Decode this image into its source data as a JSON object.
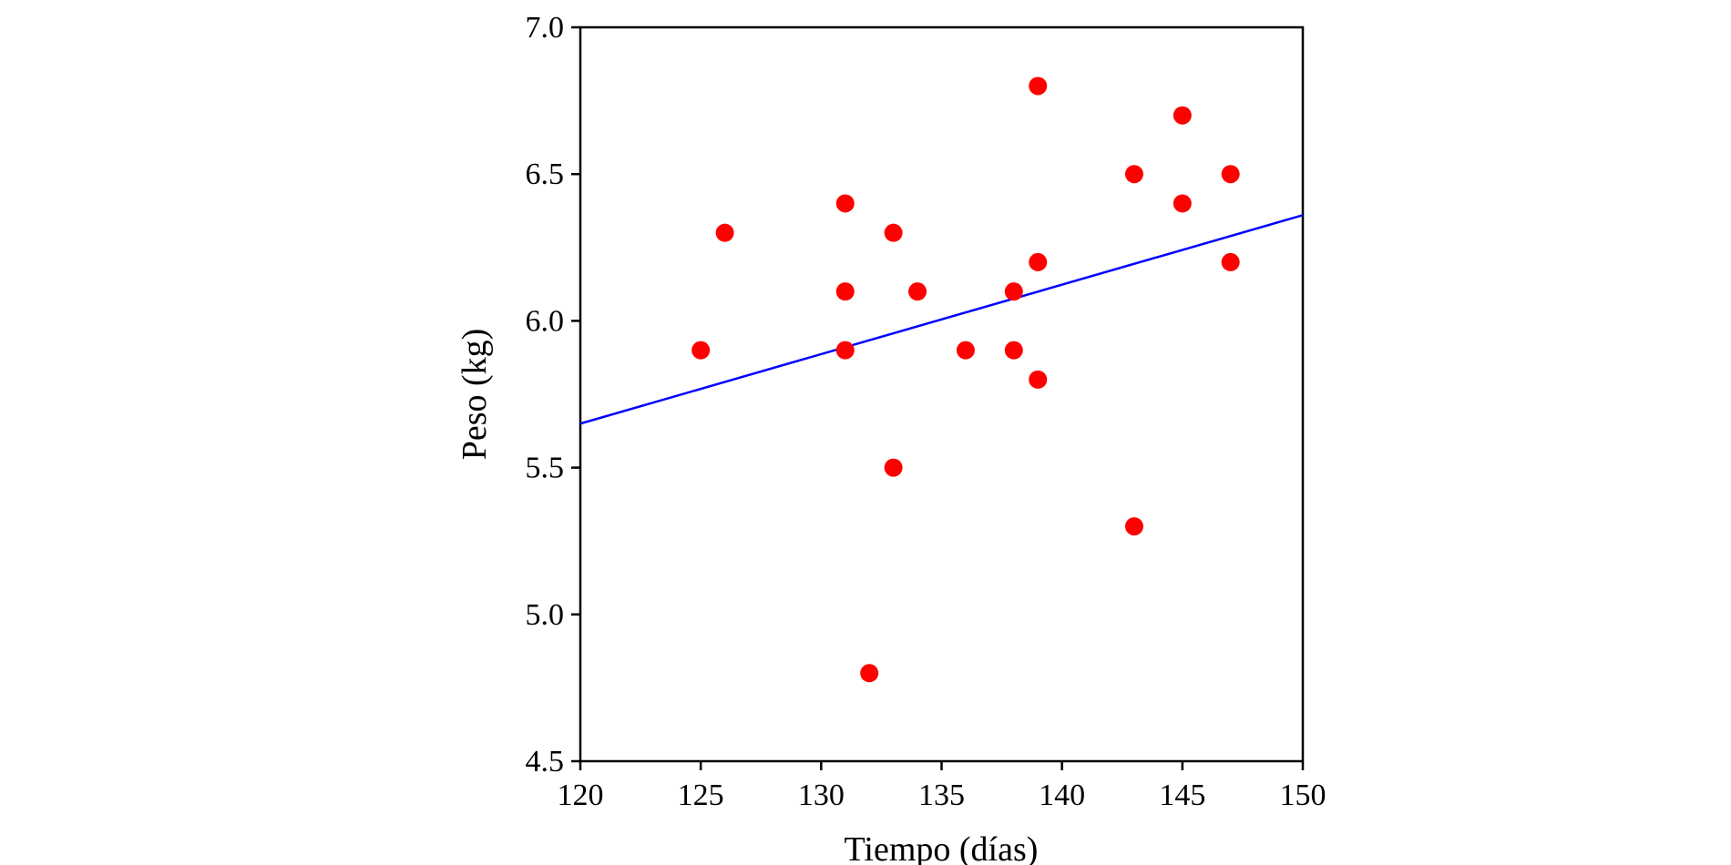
{
  "chart_data": {
    "type": "scatter",
    "title": "",
    "xlabel": "Tiempo (días)",
    "ylabel": "Peso (kg)",
    "xlim": [
      120,
      150
    ],
    "ylim": [
      4.5,
      7.0
    ],
    "x_ticks": [
      "120",
      "125",
      "130",
      "135",
      "140",
      "145",
      "150"
    ],
    "y_ticks": [
      "4.5",
      "5.0",
      "5.5",
      "6.0",
      "6.5",
      "7.0"
    ],
    "grid": false,
    "points": [
      {
        "x": 125,
        "y": 5.9
      },
      {
        "x": 126,
        "y": 6.3
      },
      {
        "x": 131,
        "y": 6.4
      },
      {
        "x": 131,
        "y": 6.1
      },
      {
        "x": 131,
        "y": 5.9
      },
      {
        "x": 132,
        "y": 4.8
      },
      {
        "x": 133,
        "y": 6.3
      },
      {
        "x": 133,
        "y": 5.5
      },
      {
        "x": 134,
        "y": 6.1
      },
      {
        "x": 136,
        "y": 5.9
      },
      {
        "x": 138,
        "y": 6.1
      },
      {
        "x": 138,
        "y": 5.9
      },
      {
        "x": 139,
        "y": 6.8
      },
      {
        "x": 139,
        "y": 6.2
      },
      {
        "x": 139,
        "y": 5.8
      },
      {
        "x": 143,
        "y": 6.5
      },
      {
        "x": 143,
        "y": 5.3
      },
      {
        "x": 145,
        "y": 6.7
      },
      {
        "x": 145,
        "y": 6.4
      },
      {
        "x": 147,
        "y": 6.5
      },
      {
        "x": 147,
        "y": 6.2
      }
    ],
    "trendline": {
      "x": [
        120,
        150
      ],
      "y": [
        5.65,
        6.36
      ]
    },
    "colors": {
      "points": "#ff0000",
      "trendline": "#0000ff",
      "axes": "#000000"
    }
  }
}
